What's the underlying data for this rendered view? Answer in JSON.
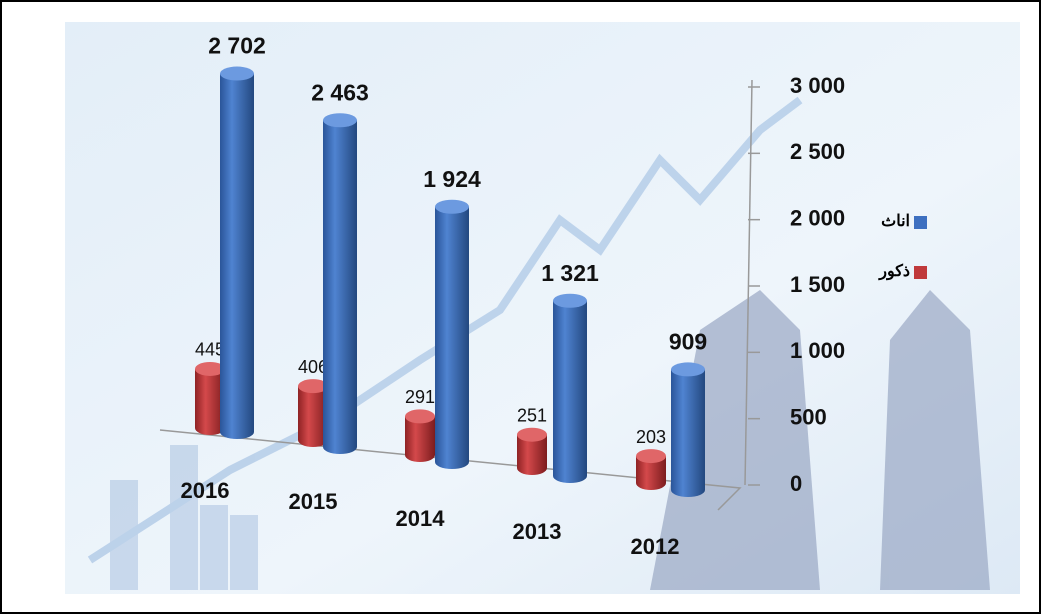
{
  "chart_data": {
    "type": "bar",
    "categories": [
      "2016",
      "2015",
      "2014",
      "2013",
      "2012"
    ],
    "series": [
      {
        "name": "اناث",
        "color": "#3d6fc0",
        "values": [
          2702,
          2463,
          1924,
          1321,
          909
        ],
        "value_labels": [
          "2 702",
          "2 463",
          "1 924",
          "1 321",
          "909"
        ]
      },
      {
        "name": "ذكور",
        "color": "#c0393b",
        "values": [
          445,
          406,
          291,
          251,
          203
        ]
      }
    ],
    "ylim": [
      0,
      3000
    ],
    "yticks": [
      0,
      500,
      {
        "value": 1000,
        "label": "1 000"
      },
      {
        "value": 1500,
        "label": "1 500"
      },
      {
        "value": 2000,
        "label": "2 000"
      },
      {
        "value": 2500,
        "label": "2 500"
      },
      {
        "value": 3000,
        "label": "3 000"
      }
    ],
    "legend": "right"
  }
}
